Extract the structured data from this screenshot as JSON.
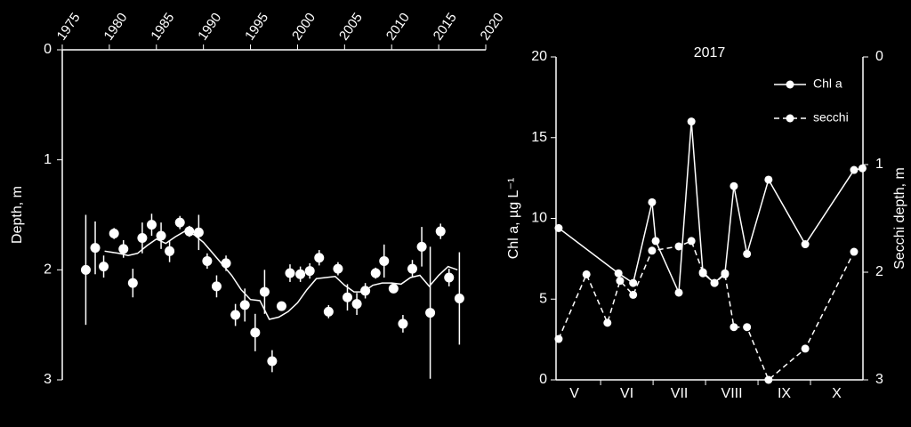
{
  "chart_data": [
    {
      "type": "scatter",
      "y_label": "Depth, m",
      "x_axis_position": "top",
      "xlim": [
        1975,
        2020
      ],
      "xticks": [
        1975,
        1980,
        1985,
        1990,
        1995,
        2000,
        2005,
        2010,
        2015,
        2020
      ],
      "ylim": [
        0,
        3
      ],
      "yticks": [
        0,
        1,
        2,
        3
      ],
      "y_reversed": true,
      "points": {
        "color": "#ffffff",
        "x": [
          1977.5,
          1978.5,
          1979.4,
          1980.5,
          1981.5,
          1982.5,
          1983.5,
          1984.5,
          1985.5,
          1986.4,
          1987.5,
          1988.5,
          1989.5,
          1990.4,
          1991.4,
          1992.4,
          1993.4,
          1994.4,
          1995.5,
          1996.5,
          1997.3,
          1998.3,
          1999.2,
          2000.3,
          2001.3,
          2002.3,
          2003.3,
          2004.3,
          2005.3,
          2006.3,
          2007.2,
          2008.3,
          2009.2,
          2010.2,
          2011.2,
          2012.2,
          2013.2,
          2014.1,
          2015.2,
          2016.1,
          2017.2
        ],
        "values": [
          2.0,
          1.8,
          1.97,
          1.67,
          1.81,
          2.12,
          1.71,
          1.59,
          1.69,
          1.83,
          1.57,
          1.65,
          1.66,
          1.92,
          2.15,
          1.94,
          2.41,
          2.32,
          2.57,
          2.2,
          2.83,
          2.33,
          2.03,
          2.04,
          2.01,
          1.89,
          2.38,
          1.99,
          2.25,
          2.31,
          2.19,
          2.03,
          1.92,
          2.17,
          2.49,
          1.99,
          1.79,
          2.39,
          1.65,
          2.07,
          2.26
        ],
        "errors": [
          0.5,
          0.24,
          0.1,
          0.05,
          0.08,
          0.13,
          0.14,
          0.1,
          0.12,
          0.1,
          0.06,
          0.05,
          0.16,
          0.07,
          0.1,
          0.07,
          0.1,
          0.15,
          0.17,
          0.2,
          0.1,
          0.04,
          0.08,
          0.07,
          0.07,
          0.07,
          0.06,
          0.06,
          0.12,
          0.1,
          0.07,
          0.05,
          0.15,
          0.04,
          0.08,
          0.08,
          0.18,
          0.6,
          0.07,
          0.08,
          0.42
        ]
      },
      "trend": {
        "color": "#9a9a9a",
        "x": [
          1979.5,
          1981,
          1982,
          1983,
          1984,
          1985,
          1986,
          1987,
          1988,
          1989,
          1990,
          1991,
          1992,
          1993,
          1994,
          1995,
          1996,
          1997,
          1998,
          1999,
          2000,
          2001,
          2002,
          2003,
          2004,
          2005,
          2006,
          2007,
          2008,
          2009,
          2010,
          2011,
          2012,
          2013,
          2014,
          2015,
          2016,
          2017
        ],
        "values": [
          1.83,
          1.85,
          1.87,
          1.85,
          1.78,
          1.72,
          1.76,
          1.7,
          1.65,
          1.68,
          1.75,
          1.85,
          1.95,
          2.05,
          2.18,
          2.27,
          2.28,
          2.45,
          2.43,
          2.38,
          2.3,
          2.18,
          2.08,
          2.07,
          2.06,
          2.14,
          2.2,
          2.2,
          2.14,
          2.12,
          2.12,
          2.13,
          2.07,
          2.05,
          2.15,
          2.05,
          1.97,
          2.0
        ]
      }
    },
    {
      "type": "line",
      "title": "2017",
      "y_label": "Chl a, µg L⁻¹",
      "y2_label": "Secchi depth, m",
      "categories": [
        "V",
        "VI",
        "VII",
        "VIII",
        "IX",
        "X"
      ],
      "xlim": [
        0.15,
        6
      ],
      "ylim": [
        0,
        20
      ],
      "yticks": [
        0,
        5,
        10,
        15,
        20
      ],
      "y2lim": [
        0,
        3
      ],
      "y2ticks": [
        0,
        1,
        2,
        3
      ],
      "y2_reversed": true,
      "legend": "top-right",
      "series": [
        {
          "name": "Chl a",
          "color": "#ffffff",
          "dashed": false,
          "x": [
            0.2,
            1.34,
            1.62,
            1.98,
            2.05,
            2.49,
            2.73,
            2.95,
            3.17,
            3.37,
            3.54,
            3.79,
            4.2,
            4.9,
            5.83,
            5.99
          ],
          "values": [
            9.4,
            6.6,
            6.0,
            11.0,
            8.6,
            5.4,
            16.0,
            6.6,
            6.0,
            6.6,
            12.0,
            7.8,
            12.4,
            8.4,
            13.0,
            13.1
          ]
        },
        {
          "name": "secchi",
          "color": "#ffffff",
          "dashed": true,
          "axis": "y2",
          "x": [
            0.2,
            0.73,
            1.13,
            1.37,
            1.62,
            1.98,
            2.49,
            2.73,
            2.95,
            3.17,
            3.37,
            3.54,
            3.79,
            4.2,
            4.9,
            5.83
          ],
          "values": [
            2.62,
            2.02,
            2.47,
            2.08,
            2.21,
            1.8,
            1.76,
            1.71,
            2.0,
            2.1,
            2.02,
            2.51,
            2.51,
            3.0,
            2.71,
            1.81
          ]
        }
      ]
    }
  ]
}
